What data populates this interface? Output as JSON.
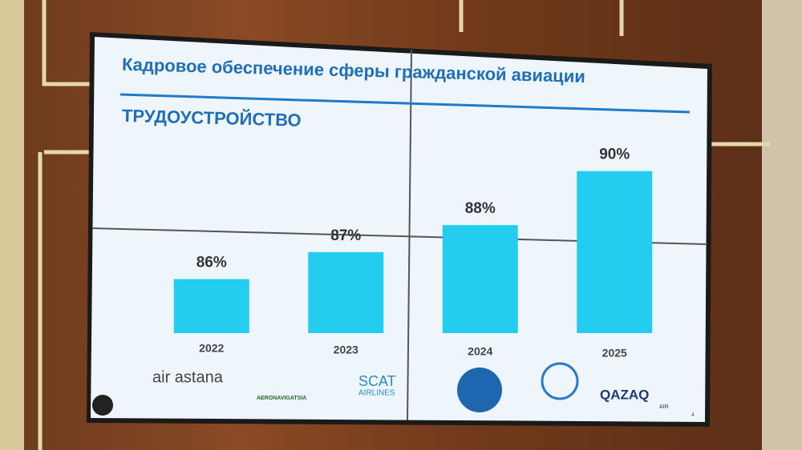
{
  "chart_data": {
    "type": "bar",
    "title": "Кадровое обеспечение сферы гражданской авиации",
    "subtitle": "ТРУДОУСТРОЙСТВО",
    "categories": [
      "2022",
      "2023",
      "2024",
      "2025"
    ],
    "values": [
      86,
      87,
      88,
      90
    ],
    "value_labels": [
      "86%",
      "87%",
      "88%",
      "90%"
    ],
    "color": "#22cdf0",
    "ylim": [
      84,
      91
    ]
  },
  "slide": {
    "logos": [
      "air astana",
      "AERONAVIGATSIA",
      "SCAT",
      "AIRLINES",
      "QAZAQ",
      "AIR"
    ],
    "page_number": "4"
  }
}
